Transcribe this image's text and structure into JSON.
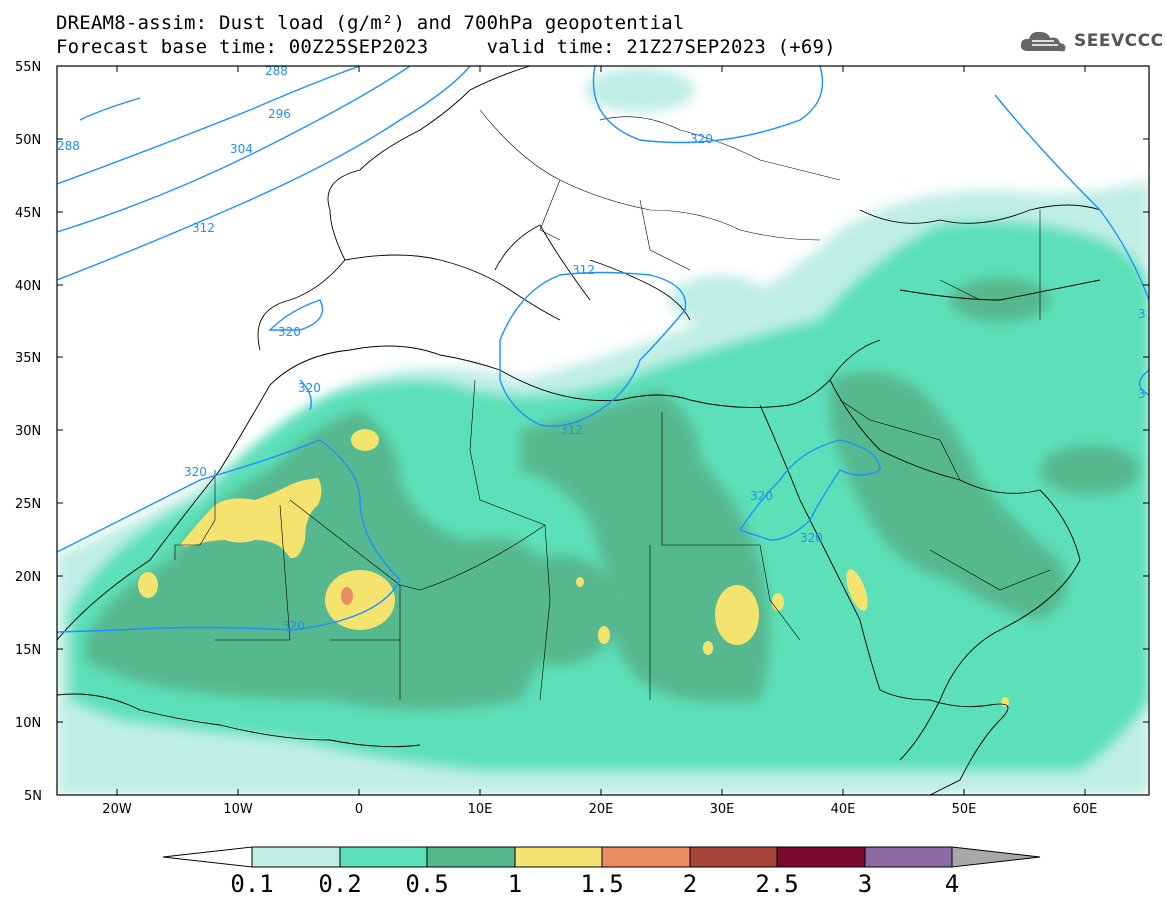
{
  "header": {
    "title_line1": "DREAM8-assim: Dust load (g/m²) and 700hPa geopotential",
    "title_line2": "Forecast base time: 00Z25SEP2023     valid time: 21Z27SEP2023 (+69)",
    "logo_text": "SEEVCCC"
  },
  "map": {
    "lat_labels": [
      "55N",
      "50N",
      "45N",
      "40N",
      "35N",
      "30N",
      "25N",
      "20N",
      "15N",
      "10N",
      "5N"
    ],
    "lon_labels": [
      "20W",
      "10W",
      "0",
      "10E",
      "20E",
      "30E",
      "40E",
      "50E",
      "60E"
    ],
    "contour_labels": [
      "288",
      "296",
      "304",
      "312",
      "288",
      "320",
      "312",
      "320",
      "312",
      "320",
      "320",
      "320",
      "320",
      "320",
      "3",
      "3"
    ],
    "contour_color": "#1e90ff"
  },
  "colorbar": {
    "ticks": [
      "0.1",
      "0.2",
      "0.5",
      "1",
      "1.5",
      "2",
      "2.5",
      "3",
      "4"
    ],
    "colors": [
      "#ffffff",
      "#bfeee5",
      "#5be0b8",
      "#56b88f",
      "#f4e36e",
      "#eb8c63",
      "#a8463c",
      "#7a0a2e",
      "#8c6ba4",
      "#a8a8a8"
    ]
  }
}
